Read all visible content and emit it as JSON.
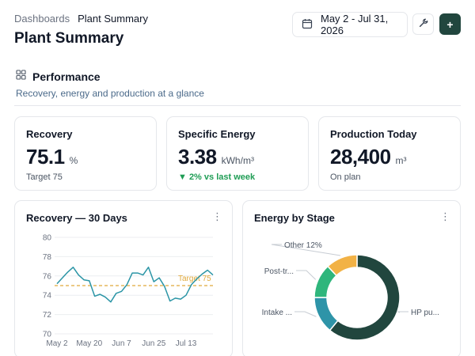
{
  "breadcrumb": {
    "parent": "Dashboards",
    "current": "Plant Summary"
  },
  "page": {
    "title": "Plant Summary"
  },
  "toolbar": {
    "date_range": "May 2 - Jul 31, 2026",
    "add_label": "+"
  },
  "icons": {
    "calendar": "calendar-icon",
    "wrench": "wrench-icon",
    "grid": "grid-icon",
    "kebab": "kebab-icon"
  },
  "colors": {
    "accent": "#21463e",
    "teal": "#2e94a8",
    "green": "#2fb67c",
    "amber": "#f2b246",
    "line": "#2b95a6",
    "target": "#e0a93b",
    "positive": "#1f9d55"
  },
  "section": {
    "title": "Performance",
    "subtitle": "Recovery, energy and production at a glance"
  },
  "kpis": [
    {
      "label": "Recovery",
      "value": "75.1",
      "unit": "%",
      "foot": "Target 75"
    },
    {
      "label": "Specific Energy",
      "value": "3.38",
      "unit": "kWh/m³",
      "foot": "▼ 2% vs last week"
    },
    {
      "label": "Production Today",
      "value": "28,400",
      "unit": "m³",
      "foot": "On plan"
    }
  ],
  "chart_data": [
    {
      "type": "line",
      "title": "Recovery — 30 Days",
      "x_ticks": [
        "May 2",
        "May 20",
        "Jun 7",
        "Jun 25",
        "Jul 13"
      ],
      "y_ticks": [
        70,
        72,
        74,
        76,
        78,
        80
      ],
      "ylim": [
        70,
        80
      ],
      "grid": true,
      "target": {
        "label": "Target 75",
        "value": 75
      },
      "values": [
        75.2,
        75.8,
        76.4,
        76.9,
        76.1,
        75.6,
        75.5,
        73.9,
        74.1,
        73.8,
        73.3,
        74.2,
        74.4,
        75.1,
        76.3,
        76.3,
        76.1,
        76.9,
        75.4,
        75.8,
        74.9,
        73.4,
        73.7,
        73.6,
        74.0,
        75.1,
        75.7,
        76.2,
        76.6,
        76.1
      ]
    },
    {
      "type": "pie",
      "title": "Energy by Stage",
      "slices": [
        {
          "label": "HP pu...",
          "value": 61
        },
        {
          "label": "Intake ...",
          "value": 14
        },
        {
          "label": "Post-tr...",
          "value": 13
        },
        {
          "label": "Other",
          "value": 12,
          "pct_label": "12%"
        }
      ]
    }
  ]
}
